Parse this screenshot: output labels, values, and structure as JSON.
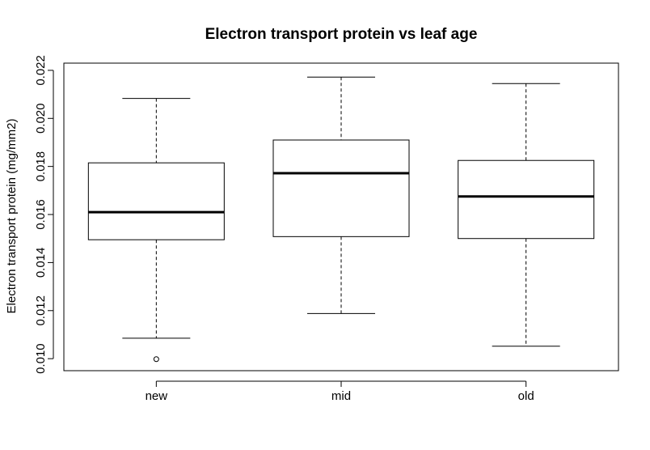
{
  "chart_data": {
    "type": "boxplot",
    "title": "Electron transport protein vs leaf age",
    "xlabel": "",
    "ylabel": "Electron transport protein (mg/mm2)",
    "ylim": [
      0.0095,
      0.0223
    ],
    "y_ticks": [
      "0.010",
      "0.012",
      "0.014",
      "0.016",
      "0.018",
      "0.020",
      "0.022"
    ],
    "grid": false,
    "categories": [
      "new",
      "mid",
      "old"
    ],
    "boxes": [
      {
        "name": "new",
        "whisker_low": 0.01085,
        "q1": 0.01495,
        "median": 0.0161,
        "q3": 0.01815,
        "whisker_high": 0.02083,
        "outliers": [
          0.00998
        ]
      },
      {
        "name": "mid",
        "whisker_low": 0.01188,
        "q1": 0.01508,
        "median": 0.01772,
        "q3": 0.0191,
        "whisker_high": 0.02172,
        "outliers": []
      },
      {
        "name": "old",
        "whisker_low": 0.01052,
        "q1": 0.015,
        "median": 0.01675,
        "q3": 0.01825,
        "whisker_high": 0.02145,
        "outliers": []
      }
    ]
  }
}
